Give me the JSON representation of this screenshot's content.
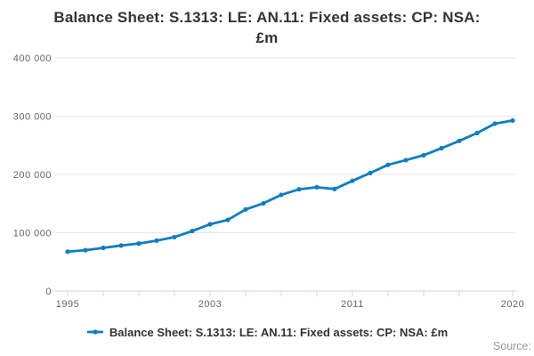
{
  "title": {
    "line1": "Balance Sheet: S.1313: LE: AN.11: Fixed assets: CP: NSA:",
    "line2": "£m"
  },
  "legend": {
    "label": "Balance Sheet: S.1313: LE: AN.11: Fixed assets: CP: NSA: £m"
  },
  "source": {
    "label": "Source:"
  },
  "colors": {
    "line": "#0f7dc2",
    "grid": "#e6e6e6",
    "axis": "#ccd6eb",
    "tick_label": "#666666",
    "title_text": "#333333",
    "legend_text": "#333333",
    "source_text": "#999999"
  },
  "chart_data": {
    "type": "line",
    "title": "Balance Sheet: S.1313: LE: AN.11: Fixed assets: CP: NSA: £m",
    "series_name": "Balance Sheet: S.1313: LE: AN.11: Fixed assets: CP: NSA: £m",
    "xlabel": "",
    "ylabel": "",
    "x": [
      1995,
      1996,
      1997,
      1998,
      1999,
      2000,
      2001,
      2002,
      2003,
      2004,
      2005,
      2006,
      2007,
      2008,
      2009,
      2010,
      2011,
      2012,
      2013,
      2014,
      2015,
      2016,
      2017,
      2018,
      2019,
      2020
    ],
    "values": [
      67500,
      70000,
      74000,
      78000,
      81500,
      86500,
      92500,
      103000,
      114500,
      122000,
      140000,
      150500,
      165000,
      174500,
      178000,
      175000,
      189000,
      202500,
      216500,
      224500,
      233000,
      245000,
      257500,
      271000,
      287000,
      292500
    ],
    "xlim": [
      1995,
      2020
    ],
    "ylim": [
      0,
      400000
    ],
    "ytick_values": [
      0,
      100000,
      200000,
      300000,
      400000
    ],
    "ytick_labels": [
      "0",
      "100 000",
      "200 000",
      "300 000",
      "400 000"
    ],
    "xtick_years": [
      1995,
      1997,
      1999,
      2001,
      2003,
      2005,
      2007,
      2009,
      2011,
      2013,
      2015,
      2017,
      2020
    ],
    "xtick_labeled_years": [
      1995,
      2003,
      2011,
      2020
    ],
    "grid": "horizontal",
    "legend_position": "bottom-center",
    "marker": "circle"
  }
}
